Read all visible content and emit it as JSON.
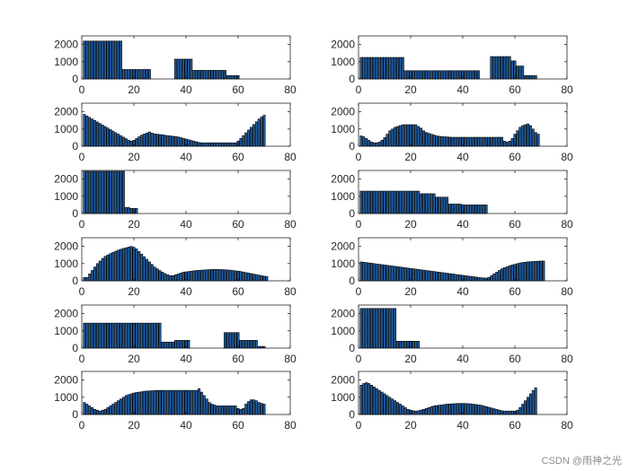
{
  "watermark": "CSDN @雨神之光",
  "style": {
    "bar_color": "#1f5fa6",
    "edge_color": "#000000",
    "axis_color": "#262626"
  },
  "chart_data": [
    {
      "type": "bar",
      "xlim": [
        0,
        80
      ],
      "ylim": [
        0,
        2500
      ],
      "xticks": [
        "0",
        "20",
        "40",
        "60",
        "80"
      ],
      "yticks": [
        "0",
        "1000",
        "2000"
      ],
      "values": [
        2200,
        2200,
        2200,
        2200,
        2200,
        2200,
        2200,
        2200,
        2200,
        2200,
        2200,
        2200,
        2200,
        2200,
        2200,
        550,
        550,
        550,
        550,
        550,
        550,
        550,
        550,
        550,
        550,
        550,
        0,
        0,
        0,
        0,
        0,
        0,
        0,
        0,
        0,
        1150,
        1150,
        1150,
        1150,
        1150,
        1150,
        1150,
        500,
        500,
        500,
        500,
        500,
        500,
        500,
        500,
        500,
        500,
        500,
        500,
        500,
        200,
        200,
        200,
        200,
        200
      ]
    },
    {
      "type": "bar",
      "xlim": [
        0,
        80
      ],
      "ylim": [
        0,
        2500
      ],
      "xticks": [
        "0",
        "20",
        "40",
        "60",
        "80"
      ],
      "yticks": [
        "0",
        "1000",
        "2000"
      ],
      "values": [
        1250,
        1250,
        1250,
        1250,
        1250,
        1250,
        1250,
        1250,
        1250,
        1250,
        1250,
        1250,
        1250,
        1250,
        1250,
        1250,
        1250,
        480,
        480,
        480,
        480,
        480,
        480,
        480,
        480,
        480,
        480,
        480,
        480,
        480,
        480,
        480,
        480,
        480,
        480,
        480,
        480,
        480,
        480,
        480,
        480,
        480,
        480,
        480,
        480,
        480,
        0,
        0,
        0,
        0,
        1300,
        1300,
        1300,
        1300,
        1300,
        1300,
        1300,
        1300,
        1050,
        1050,
        750,
        750,
        750,
        200,
        200,
        200,
        200,
        200
      ]
    },
    {
      "type": "bar",
      "xlim": [
        0,
        80
      ],
      "ylim": [
        0,
        2500
      ],
      "xticks": [
        "0",
        "20",
        "40",
        "60",
        "80"
      ],
      "yticks": [
        "0",
        "1000",
        "2000"
      ],
      "values": [
        1850,
        1762,
        1674,
        1586,
        1498,
        1410,
        1322,
        1234,
        1146,
        1058,
        970,
        882,
        794,
        706,
        618,
        530,
        442,
        354,
        300,
        350,
        450,
        550,
        650,
        710,
        770,
        830,
        760,
        720,
        700,
        680,
        660,
        640,
        620,
        600,
        580,
        560,
        540,
        500,
        460,
        420,
        380,
        340,
        300,
        260,
        220,
        200,
        200,
        200,
        200,
        200,
        200,
        200,
        200,
        200,
        200,
        200,
        200,
        200,
        200,
        300,
        460,
        620,
        780,
        940,
        1100,
        1260,
        1420,
        1580,
        1700,
        1800
      ]
    },
    {
      "type": "bar",
      "xlim": [
        0,
        80
      ],
      "ylim": [
        0,
        2500
      ],
      "xticks": [
        "0",
        "20",
        "40",
        "60",
        "80"
      ],
      "yticks": [
        "0",
        "1000",
        "2000"
      ],
      "values": [
        600,
        550,
        450,
        350,
        250,
        200,
        200,
        250,
        350,
        500,
        700,
        900,
        1000,
        1100,
        1150,
        1200,
        1250,
        1250,
        1250,
        1250,
        1250,
        1250,
        1150,
        1050,
        900,
        800,
        750,
        700,
        650,
        600,
        580,
        560,
        550,
        540,
        530,
        520,
        520,
        520,
        520,
        520,
        520,
        520,
        520,
        520,
        520,
        520,
        520,
        520,
        520,
        520,
        520,
        520,
        520,
        520,
        520,
        300,
        250,
        300,
        450,
        700,
        900,
        1100,
        1200,
        1250,
        1300,
        1200,
        1000,
        800,
        700
      ]
    },
    {
      "type": "bar",
      "xlim": [
        0,
        80
      ],
      "ylim": [
        0,
        2500
      ],
      "xticks": [
        "0",
        "20",
        "40",
        "60",
        "80"
      ],
      "yticks": [
        "0",
        "1000",
        "2000"
      ],
      "values": [
        2450,
        2450,
        2450,
        2450,
        2450,
        2450,
        2450,
        2450,
        2450,
        2450,
        2450,
        2450,
        2450,
        2450,
        2450,
        2450,
        350,
        350,
        300,
        300,
        300,
        0,
        0,
        0,
        0,
        0,
        0,
        0,
        0,
        0,
        0,
        0,
        0,
        0,
        0,
        0,
        0,
        0,
        0,
        0,
        0,
        0,
        0,
        0,
        0,
        0,
        0,
        0,
        0,
        0,
        0,
        0,
        0,
        0,
        0,
        0,
        0,
        0,
        0,
        0,
        0,
        0,
        0,
        0,
        0,
        0,
        0,
        0,
        0,
        0,
        0
      ]
    },
    {
      "type": "bar",
      "xlim": [
        0,
        80
      ],
      "ylim": [
        0,
        2500
      ],
      "xticks": [
        "0",
        "20",
        "40",
        "60",
        "80"
      ],
      "yticks": [
        "0",
        "1000",
        "2000"
      ],
      "values": [
        1300,
        1300,
        1300,
        1300,
        1300,
        1300,
        1300,
        1300,
        1300,
        1300,
        1300,
        1300,
        1300,
        1300,
        1300,
        1300,
        1300,
        1300,
        1300,
        1300,
        1300,
        1300,
        1300,
        1150,
        1150,
        1150,
        1150,
        1150,
        1150,
        950,
        950,
        950,
        950,
        950,
        550,
        550,
        550,
        550,
        550,
        500,
        500,
        500,
        500,
        500,
        500,
        500,
        500,
        500,
        500,
        0,
        0,
        0,
        0,
        0,
        0,
        0,
        0,
        0,
        0,
        0,
        0,
        0,
        0,
        0,
        0,
        0,
        0,
        0,
        0,
        0,
        0
      ]
    },
    {
      "type": "bar",
      "xlim": [
        0,
        80
      ],
      "ylim": [
        0,
        2500
      ],
      "xticks": [
        "0",
        "20",
        "40",
        "60",
        "80"
      ],
      "yticks": [
        "0",
        "1000",
        "2000"
      ],
      "values": [
        200,
        200,
        400,
        600,
        800,
        1000,
        1150,
        1300,
        1420,
        1500,
        1580,
        1650,
        1720,
        1780,
        1830,
        1880,
        1920,
        1960,
        2000,
        1950,
        1850,
        1700,
        1550,
        1400,
        1250,
        1100,
        950,
        800,
        700,
        600,
        500,
        420,
        350,
        300,
        300,
        350,
        400,
        450,
        500,
        520,
        540,
        560,
        580,
        600,
        610,
        620,
        630,
        640,
        650,
        660,
        660,
        660,
        660,
        650,
        640,
        630,
        620,
        600,
        580,
        560,
        540,
        510,
        480,
        450,
        420,
        390,
        360,
        330,
        300,
        270,
        250
      ]
    },
    {
      "type": "bar",
      "xlim": [
        0,
        80
      ],
      "ylim": [
        0,
        2500
      ],
      "xticks": [
        "0",
        "20",
        "40",
        "60",
        "80"
      ],
      "yticks": [
        "0",
        "1000",
        "2000"
      ],
      "values": [
        1100,
        1080,
        1060,
        1040,
        1020,
        1000,
        980,
        960,
        940,
        920,
        900,
        880,
        860,
        840,
        820,
        800,
        780,
        760,
        740,
        720,
        700,
        680,
        660,
        640,
        620,
        600,
        580,
        560,
        540,
        520,
        500,
        480,
        460,
        440,
        420,
        400,
        380,
        360,
        340,
        320,
        300,
        280,
        260,
        240,
        220,
        200,
        180,
        170,
        160,
        200,
        300,
        400,
        500,
        600,
        700,
        760,
        820,
        880,
        920,
        960,
        1000,
        1040,
        1060,
        1080,
        1100,
        1110,
        1120,
        1130,
        1140,
        1150,
        1150
      ]
    },
    {
      "type": "bar",
      "xlim": [
        0,
        80
      ],
      "ylim": [
        0,
        2500
      ],
      "xticks": [
        "0",
        "20",
        "40",
        "60",
        "80"
      ],
      "yticks": [
        "0",
        "1000",
        "2000"
      ],
      "values": [
        1450,
        1450,
        1450,
        1450,
        1450,
        1450,
        1450,
        1450,
        1450,
        1450,
        1450,
        1450,
        1450,
        1450,
        1450,
        1450,
        1450,
        1450,
        1450,
        1450,
        1450,
        1450,
        1450,
        1450,
        1450,
        1450,
        1450,
        1450,
        1450,
        1450,
        350,
        350,
        350,
        350,
        350,
        450,
        450,
        450,
        450,
        450,
        450,
        0,
        0,
        0,
        0,
        0,
        0,
        0,
        0,
        0,
        0,
        0,
        0,
        0,
        900,
        900,
        900,
        900,
        900,
        900,
        450,
        450,
        450,
        450,
        450,
        450,
        450,
        100,
        100,
        100
      ]
    },
    {
      "type": "bar",
      "xlim": [
        0,
        80
      ],
      "ylim": [
        0,
        2500
      ],
      "xticks": [
        "0",
        "20",
        "40",
        "60",
        "80"
      ],
      "yticks": [
        "0",
        "1000",
        "2000"
      ],
      "values": [
        2300,
        2300,
        2300,
        2300,
        2300,
        2300,
        2300,
        2300,
        2300,
        2300,
        2300,
        2300,
        2300,
        2300,
        400,
        400,
        400,
        400,
        400,
        400,
        400,
        400,
        400,
        0,
        0,
        0,
        0,
        0,
        0,
        0,
        0,
        0,
        0,
        0,
        0,
        0,
        0,
        0,
        0,
        0,
        0,
        0,
        0,
        0,
        0,
        0,
        0,
        0,
        0,
        0,
        0,
        0,
        0,
        0,
        0,
        0,
        0,
        0,
        0,
        0,
        0,
        0,
        0,
        0,
        0,
        0,
        0,
        0,
        0,
        0
      ]
    },
    {
      "type": "bar",
      "xlim": [
        0,
        80
      ],
      "ylim": [
        0,
        2500
      ],
      "xticks": [
        "0",
        "20",
        "40",
        "60",
        "80"
      ],
      "yticks": [
        "0",
        "1000",
        "2000"
      ],
      "values": [
        700,
        600,
        500,
        400,
        300,
        250,
        200,
        250,
        300,
        400,
        500,
        600,
        700,
        800,
        900,
        1000,
        1100,
        1150,
        1200,
        1250,
        1280,
        1300,
        1320,
        1350,
        1360,
        1370,
        1380,
        1390,
        1400,
        1400,
        1400,
        1400,
        1400,
        1400,
        1400,
        1400,
        1400,
        1400,
        1400,
        1400,
        1400,
        1400,
        1400,
        1400,
        1500,
        1300,
        1100,
        900,
        700,
        600,
        550,
        500,
        500,
        500,
        500,
        500,
        500,
        500,
        500,
        350,
        300,
        350,
        600,
        750,
        850,
        850,
        800,
        700,
        650,
        600
      ]
    },
    {
      "type": "bar",
      "xlim": [
        0,
        80
      ],
      "ylim": [
        0,
        2500
      ],
      "xticks": [
        "0",
        "20",
        "40",
        "60",
        "80"
      ],
      "yticks": [
        "0",
        "1000",
        "2000"
      ],
      "values": [
        1700,
        1800,
        1850,
        1800,
        1700,
        1600,
        1500,
        1400,
        1300,
        1200,
        1100,
        1000,
        900,
        800,
        700,
        600,
        500,
        400,
        300,
        260,
        220,
        200,
        220,
        260,
        300,
        350,
        400,
        450,
        500,
        520,
        540,
        560,
        580,
        600,
        610,
        620,
        630,
        640,
        640,
        640,
        640,
        630,
        620,
        600,
        580,
        560,
        540,
        500,
        460,
        420,
        380,
        340,
        300,
        260,
        220,
        200,
        200,
        200,
        200,
        200,
        250,
        400,
        600,
        800,
        1000,
        1200,
        1400,
        1550
      ]
    }
  ]
}
